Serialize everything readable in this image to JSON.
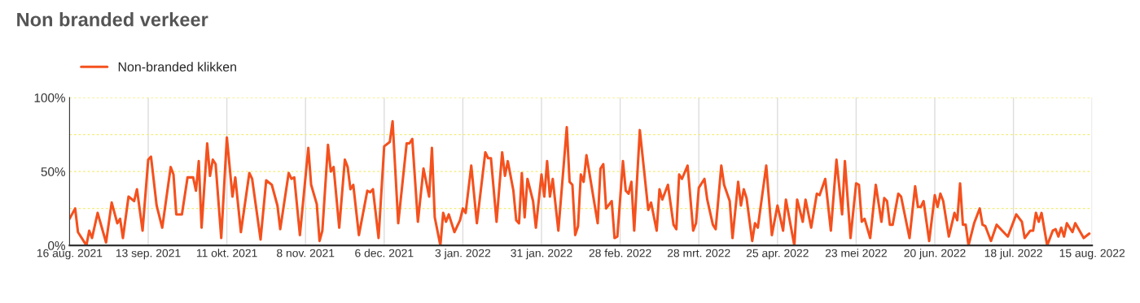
{
  "chart_data": {
    "type": "line",
    "title": "Non branded verkeer",
    "x": [
      "2021-08-16",
      "2021-08-18",
      "2021-08-19",
      "2021-08-22",
      "2021-08-23",
      "2021-08-24",
      "2021-08-26",
      "2021-08-29",
      "2021-08-31",
      "2021-09-02",
      "2021-09-03",
      "2021-09-04",
      "2021-09-06",
      "2021-09-08",
      "2021-09-09",
      "2021-09-11",
      "2021-09-13",
      "2021-09-14",
      "2021-09-16",
      "2021-09-18",
      "2021-09-21",
      "2021-09-22",
      "2021-09-23",
      "2021-09-25",
      "2021-09-27",
      "2021-09-29",
      "2021-09-30",
      "2021-10-01",
      "2021-10-02",
      "2021-10-04",
      "2021-10-05",
      "2021-10-06",
      "2021-10-07",
      "2021-10-09",
      "2021-10-11",
      "2021-10-13",
      "2021-10-14",
      "2021-10-16",
      "2021-10-19",
      "2021-10-20",
      "2021-10-23",
      "2021-10-25",
      "2021-10-27",
      "2021-10-29",
      "2021-10-30",
      "2021-11-02",
      "2021-11-03",
      "2021-11-04",
      "2021-11-06",
      "2021-11-09",
      "2021-11-10",
      "2021-11-12",
      "2021-11-13",
      "2021-11-14",
      "2021-11-16",
      "2021-11-17",
      "2021-11-18",
      "2021-11-20",
      "2021-11-22",
      "2021-11-23",
      "2021-11-24",
      "2021-11-25",
      "2021-11-27",
      "2021-11-30",
      "2021-12-01",
      "2021-12-02",
      "2021-12-04",
      "2021-12-06",
      "2021-12-08",
      "2021-12-09",
      "2021-12-11",
      "2021-12-14",
      "2021-12-15",
      "2021-12-16",
      "2021-12-18",
      "2021-12-20",
      "2021-12-22",
      "2021-12-23",
      "2021-12-24",
      "2021-12-26",
      "2021-12-27",
      "2021-12-28",
      "2021-12-29",
      "2021-12-31",
      "2022-01-02",
      "2022-01-03",
      "2022-01-04",
      "2022-01-06",
      "2022-01-08",
      "2022-01-11",
      "2022-01-12",
      "2022-01-13",
      "2022-01-15",
      "2022-01-17",
      "2022-01-18",
      "2022-01-19",
      "2022-01-21",
      "2022-01-22",
      "2022-01-23",
      "2022-01-24",
      "2022-01-25",
      "2022-01-26",
      "2022-01-28",
      "2022-01-29",
      "2022-01-31",
      "2022-02-01",
      "2022-02-02",
      "2022-02-03",
      "2022-02-04",
      "2022-02-06",
      "2022-02-09",
      "2022-02-10",
      "2022-02-11",
      "2022-02-12",
      "2022-02-13",
      "2022-02-14",
      "2022-02-15",
      "2022-02-16",
      "2022-02-20",
      "2022-02-21",
      "2022-02-22",
      "2022-02-23",
      "2022-02-25",
      "2022-02-26",
      "2022-02-27",
      "2022-03-01",
      "2022-03-02",
      "2022-03-03",
      "2022-03-04",
      "2022-03-05",
      "2022-03-07",
      "2022-03-10",
      "2022-03-11",
      "2022-03-13",
      "2022-03-14",
      "2022-03-15",
      "2022-03-17",
      "2022-03-19",
      "2022-03-20",
      "2022-03-21",
      "2022-03-22",
      "2022-03-24",
      "2022-03-26",
      "2022-03-27",
      "2022-03-28",
      "2022-03-30",
      "2022-03-31",
      "2022-04-02",
      "2022-04-03",
      "2022-04-05",
      "2022-04-06",
      "2022-04-08",
      "2022-04-09",
      "2022-04-11",
      "2022-04-12",
      "2022-04-13",
      "2022-04-14",
      "2022-04-16",
      "2022-04-17",
      "2022-04-18",
      "2022-04-21",
      "2022-04-23",
      "2022-04-25",
      "2022-04-27",
      "2022-04-28",
      "2022-05-01",
      "2022-05-02",
      "2022-05-04",
      "2022-05-05",
      "2022-05-07",
      "2022-05-09",
      "2022-05-10",
      "2022-05-12",
      "2022-05-14",
      "2022-05-16",
      "2022-05-18",
      "2022-05-19",
      "2022-05-21",
      "2022-05-23",
      "2022-05-24",
      "2022-05-25",
      "2022-05-26",
      "2022-05-28",
      "2022-05-30",
      "2022-06-01",
      "2022-06-02",
      "2022-06-03",
      "2022-06-04",
      "2022-06-05",
      "2022-06-07",
      "2022-06-08",
      "2022-06-11",
      "2022-06-13",
      "2022-06-14",
      "2022-06-15",
      "2022-06-16",
      "2022-06-18",
      "2022-06-20",
      "2022-06-21",
      "2022-06-22",
      "2022-06-23",
      "2022-06-25",
      "2022-06-27",
      "2022-06-28",
      "2022-06-29",
      "2022-06-30",
      "2022-07-01",
      "2022-07-02",
      "2022-07-04",
      "2022-07-06",
      "2022-07-07",
      "2022-07-08",
      "2022-07-10",
      "2022-07-12",
      "2022-07-14",
      "2022-07-16",
      "2022-07-19",
      "2022-07-21",
      "2022-07-22",
      "2022-07-24",
      "2022-07-25",
      "2022-07-26",
      "2022-07-27",
      "2022-07-28",
      "2022-07-30",
      "2022-08-01",
      "2022-08-02",
      "2022-08-03",
      "2022-08-04",
      "2022-08-05",
      "2022-08-06",
      "2022-08-08",
      "2022-08-09",
      "2022-08-12",
      "2022-08-14"
    ],
    "series": [
      {
        "name": "Non-branded klikken",
        "color": "#f4511e",
        "values": [
          18,
          25,
          9,
          0,
          10,
          5,
          22,
          2,
          29,
          15,
          18,
          5,
          33,
          30,
          38,
          10,
          58,
          60,
          27,
          12,
          53,
          48,
          21,
          21,
          46,
          46,
          37,
          57,
          12,
          69,
          47,
          58,
          55,
          5,
          73,
          33,
          46,
          9,
          49,
          45,
          4,
          44,
          41,
          27,
          11,
          49,
          45,
          46,
          7,
          66,
          41,
          28,
          3,
          10,
          68,
          50,
          53,
          12,
          58,
          53,
          38,
          41,
          7,
          37,
          36,
          38,
          5,
          67,
          70,
          84,
          15,
          69,
          69,
          72,
          16,
          52,
          33,
          66,
          19,
          0,
          22,
          16,
          21,
          9,
          17,
          25,
          22,
          54,
          15,
          63,
          59,
          59,
          16,
          63,
          47,
          57,
          37,
          17,
          15,
          49,
          19,
          45,
          30,
          12,
          48,
          33,
          57,
          33,
          45,
          10,
          80,
          43,
          41,
          7,
          13,
          48,
          43,
          61,
          15,
          52,
          55,
          25,
          30,
          5,
          6,
          57,
          37,
          35,
          43,
          10,
          78,
          24,
          29,
          10,
          38,
          31,
          41,
          14,
          11,
          48,
          45,
          54,
          10,
          15,
          39,
          45,
          31,
          14,
          11,
          54,
          41,
          30,
          5,
          43,
          27,
          38,
          32,
          3,
          15,
          12,
          54,
          7,
          27,
          10,
          31,
          0,
          31,
          16,
          31,
          12,
          35,
          34,
          45,
          10,
          58,
          21,
          57,
          5,
          42,
          41,
          16,
          18,
          5,
          41,
          16,
          32,
          30,
          14,
          14,
          35,
          33,
          5,
          40,
          26,
          26,
          30,
          3,
          34,
          26,
          35,
          30,
          6,
          22,
          17,
          42,
          14,
          14,
          0,
          15,
          25,
          14,
          13,
          3,
          14,
          10,
          6,
          21,
          16,
          5,
          10,
          10,
          22,
          16,
          22,
          0,
          10,
          11,
          6,
          12,
          6,
          15,
          9,
          15,
          5,
          8
        ]
      }
    ],
    "xlim": [
      "2021-08-16",
      "2022-08-15"
    ],
    "xticks": [
      {
        "value": "2021-08-16",
        "label": "16 aug. 2021"
      },
      {
        "value": "2021-09-13",
        "label": "13 sep. 2021"
      },
      {
        "value": "2021-10-11",
        "label": "11 okt. 2021"
      },
      {
        "value": "2021-11-08",
        "label": "8 nov. 2021"
      },
      {
        "value": "2021-12-06",
        "label": "6 dec. 2021"
      },
      {
        "value": "2022-01-03",
        "label": "3 jan. 2022"
      },
      {
        "value": "2022-01-31",
        "label": "31 jan. 2022"
      },
      {
        "value": "2022-02-28",
        "label": "28 feb. 2022"
      },
      {
        "value": "2022-03-28",
        "label": "28 mrt. 2022"
      },
      {
        "value": "2022-04-25",
        "label": "25 apr. 2022"
      },
      {
        "value": "2022-05-23",
        "label": "23 mei 2022"
      },
      {
        "value": "2022-06-20",
        "label": "20 jun. 2022"
      },
      {
        "value": "2022-07-18",
        "label": "18 jul. 2022"
      },
      {
        "value": "2022-08-15",
        "label": "15 aug. 2022"
      }
    ],
    "ylim": [
      0,
      100
    ],
    "yticks": [
      {
        "value": 0,
        "label": "0%"
      },
      {
        "value": 25,
        "label": null
      },
      {
        "value": 50,
        "label": "50%"
      },
      {
        "value": 75,
        "label": null
      },
      {
        "value": 100,
        "label": "100%"
      }
    ],
    "grid": true,
    "legend": "top left",
    "marker": "none",
    "line_style": "solid"
  }
}
